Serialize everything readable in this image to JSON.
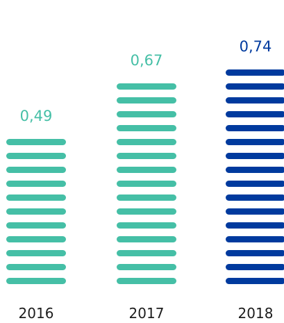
{
  "chart_data": {
    "type": "bar",
    "categories": [
      "2016",
      "2017",
      "2018"
    ],
    "values": [
      0.49,
      0.67,
      0.74
    ],
    "value_labels": [
      "0,49",
      "0,67",
      "0,74"
    ],
    "bar_style": "stacked horizontal stripes",
    "colors": [
      "#45bfa6",
      "#45bfa6",
      "#003a9e"
    ],
    "title": "",
    "xlabel": "",
    "ylabel": "",
    "ylim": [
      0,
      0.74
    ],
    "grid": false,
    "legend": "none"
  }
}
